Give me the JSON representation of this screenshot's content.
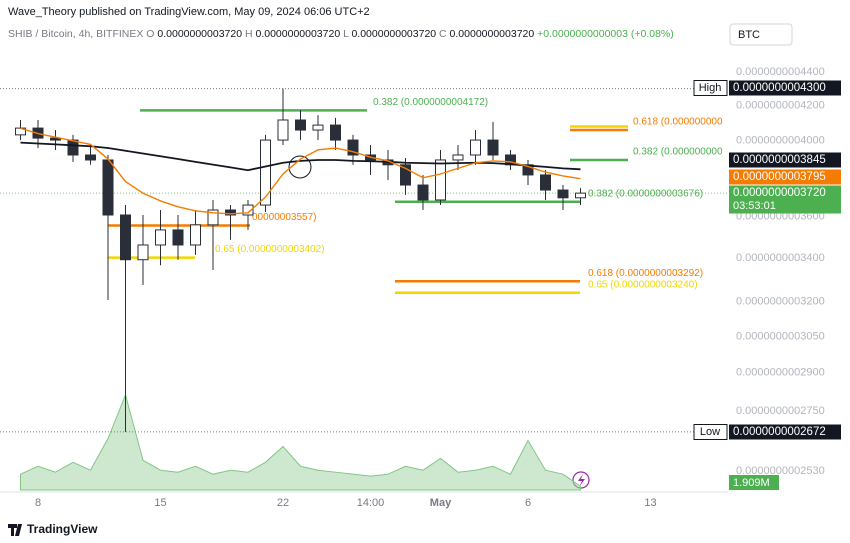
{
  "header": {
    "publisher": "Wave_Theory published on TradingView.com, May 09, 2024 06:06 UTC+2",
    "symbol": "SHIB / Bitcoin, 4h, BITFINEX",
    "ohlc": [
      {
        "key": "O",
        "value": "0.0000000003720"
      },
      {
        "key": "H",
        "value": "0.0000000003720"
      },
      {
        "key": "L",
        "value": "0.0000000003720"
      },
      {
        "key": "C",
        "value": "0.0000000003720"
      }
    ],
    "change": "+0.0000000000003 (+0.08%)",
    "currency": "BTC"
  },
  "footer": {
    "brand": "TradingView"
  },
  "chart_data": {
    "type": "candlestick",
    "log": true,
    "grid": false,
    "categories": [
      null,
      "8",
      null,
      null,
      null,
      null,
      null,
      null,
      "15",
      null,
      null,
      null,
      null,
      null,
      null,
      "22",
      null,
      null,
      null,
      null,
      "14:00",
      null,
      null,
      null,
      "May",
      null,
      null,
      null,
      null,
      "6",
      null,
      null,
      null,
      null,
      null,
      null,
      "13"
    ],
    "candles": {
      "up_color": "#ffffff",
      "down_color": "#2a2e39",
      "edge_color": "#2a2e39",
      "open": [
        4.033e-10,
        4.071e-10,
        4.015e-10,
        4.004e-10,
        3.922e-10,
        3.895e-10,
        3.609e-10,
        3.392e-10,
        3.462e-10,
        3.535e-10,
        3.462e-10,
        3.56e-10,
        3.634e-10,
        3.609e-10,
        3.659e-10,
        4.004e-10,
        4.117e-10,
        4.06e-10,
        4.088e-10,
        4.004e-10,
        3.922e-10,
        3.895e-10,
        3.869e-10,
        3.762e-10,
        3.685e-10,
        3.895e-10,
        3.922e-10,
        4.004e-10,
        3.922e-10,
        3.869e-10,
        3.815e-10,
        3.736e-10,
        3.696e-10,
        null,
        null,
        null,
        null
      ],
      "high": [
        4.117e-10,
        4.117e-10,
        4.06e-10,
        4.033e-10,
        3.977e-10,
        3.922e-10,
        3.659e-10,
        3.609e-10,
        3.634e-10,
        3.609e-10,
        3.634e-10,
        3.685e-10,
        3.659e-10,
        3.685e-10,
        4.033e-10,
        4.3e-10,
        4.174e-10,
        4.145e-10,
        4.129e-10,
        4.033e-10,
        3.977e-10,
        3.949e-10,
        3.906e-10,
        3.815e-10,
        3.949e-10,
        3.977e-10,
        4.06e-10,
        4.106e-10,
        3.949e-10,
        3.895e-10,
        3.841e-10,
        3.762e-10,
        3.747e-10,
        null,
        null,
        null,
        null
      ],
      "low": [
        4.004e-10,
        3.96e-10,
        3.949e-10,
        3.884e-10,
        3.869e-10,
        3.208e-10,
        2.672e-10,
        3.275e-10,
        3.366e-10,
        3.392e-10,
        3.415e-10,
        3.344e-10,
        3.487e-10,
        3.535e-10,
        3.624e-10,
        3.977e-10,
        4.004e-10,
        4.004e-10,
        3.949e-10,
        3.869e-10,
        3.815e-10,
        3.788e-10,
        3.711e-10,
        3.634e-10,
        3.659e-10,
        3.841e-10,
        3.869e-10,
        3.895e-10,
        3.841e-10,
        3.762e-10,
        3.685e-10,
        3.634e-10,
        3.659e-10,
        null,
        null,
        null,
        null
      ],
      "close": [
        4.071e-10,
        4.015e-10,
        4.004e-10,
        3.922e-10,
        3.895e-10,
        3.609e-10,
        3.392e-10,
        3.462e-10,
        3.535e-10,
        3.462e-10,
        3.56e-10,
        3.634e-10,
        3.609e-10,
        3.659e-10,
        4.004e-10,
        4.117e-10,
        4.06e-10,
        4.088e-10,
        4.004e-10,
        3.922e-10,
        3.895e-10,
        3.869e-10,
        3.762e-10,
        3.685e-10,
        3.895e-10,
        3.922e-10,
        4.004e-10,
        3.922e-10,
        3.869e-10,
        3.815e-10,
        3.736e-10,
        3.696e-10,
        3.72e-10,
        null,
        null,
        null,
        null
      ]
    },
    "lines": [
      {
        "color": "#131722",
        "values": [
          3.99e-10,
          3.985e-10,
          3.98e-10,
          3.975e-10,
          3.97e-10,
          3.96e-10,
          3.945e-10,
          3.93e-10,
          3.915e-10,
          3.9e-10,
          3.885e-10,
          3.87e-10,
          3.855e-10,
          3.84e-10,
          3.86e-10,
          3.88e-10,
          3.89e-10,
          3.895e-10,
          3.895e-10,
          3.89e-10,
          3.888e-10,
          3.885e-10,
          3.88e-10,
          3.878e-10,
          3.876e-10,
          3.878e-10,
          3.88e-10,
          3.878e-10,
          3.872e-10,
          3.865e-10,
          3.858e-10,
          3.85e-10,
          3.845e-10,
          null,
          null,
          null,
          null
        ]
      },
      {
        "color": "#f57c00",
        "values": [
          4.07e-10,
          4.04e-10,
          4.02e-10,
          4e-10,
          3.98e-10,
          3.9e-10,
          3.78e-10,
          3.72e-10,
          3.68e-10,
          3.65e-10,
          3.63e-10,
          3.62e-10,
          3.615e-10,
          3.62e-10,
          3.7e-10,
          3.82e-10,
          3.9e-10,
          3.95e-10,
          3.96e-10,
          3.94e-10,
          3.91e-10,
          3.89e-10,
          3.85e-10,
          3.8e-10,
          3.82e-10,
          3.85e-10,
          3.88e-10,
          3.89e-10,
          3.885e-10,
          3.86e-10,
          3.83e-10,
          3.81e-10,
          3.795e-10,
          null,
          null,
          null,
          null
        ]
      }
    ],
    "volume": {
      "color": "#a5d6a7",
      "label_color": "#4caf50",
      "values": [
        8000000,
        12000000,
        9000000,
        14000000,
        10000000,
        26000000,
        48000000,
        15000000,
        10000000,
        9000000,
        12000000,
        8000000,
        10000000,
        9000000,
        14000000,
        22000000,
        12000000,
        10000000,
        9000000,
        8000000,
        7000000,
        8000000,
        12000000,
        10000000,
        16000000,
        9000000,
        10000000,
        12000000,
        8000000,
        25000000,
        10000000,
        8000000,
        1909000,
        null,
        null,
        null,
        null
      ],
      "value_labels": [
        null,
        null,
        null,
        null,
        null,
        null,
        null,
        null,
        null,
        null,
        null,
        null,
        null,
        null,
        null,
        null,
        null,
        null,
        null,
        null,
        null,
        null,
        null,
        null,
        null,
        null,
        null,
        null,
        null,
        null,
        null,
        null,
        "1.909M",
        null,
        null,
        null,
        null
      ]
    },
    "levels": [
      {
        "label": "0.382 (0.0000000004172)",
        "value": 4.172e-10,
        "color": "#4caf50"
      },
      {
        "label": "00000003557)",
        "value": 3.557e-10,
        "color": "#f57c00"
      },
      {
        "label": "0.65 (0.0000000003402)",
        "value": 3.402e-10,
        "color": "#f2d600"
      },
      {
        "label": "0.382 (0.0000000003676)",
        "value": 3.676e-10,
        "color": "#4caf50"
      },
      {
        "label": "0.618 (0.0000000003292)",
        "value": 3.292e-10,
        "color": "#f57c00"
      },
      {
        "label": "0.65 (0.0000000003240)",
        "value": 3.24e-10,
        "color": "#f2d600"
      },
      {
        "label": "0.382 (0.000000000",
        "value": 3.895e-10,
        "color": "#4caf50"
      },
      {
        "label": "0.618 (0.000000000",
        "value": 4.06e-10,
        "color": "#f57c00"
      },
      {
        "value": 4.08e-10,
        "color": "#f2d600"
      }
    ],
    "price_labels": [
      {
        "name": "High",
        "value": 4.3e-10,
        "label": "0.0000000004300",
        "color": "#131722"
      },
      {
        "value": 3.845e-10,
        "label": "0.0000000003845",
        "color": "#131722"
      },
      {
        "value": 3.795e-10,
        "label": "0.0000000003795",
        "color": "#f57c00"
      },
      {
        "value": 3.72e-10,
        "label": "0.0000000003720",
        "color": "#4caf50",
        "countdown": "03:53:01"
      },
      {
        "name": "Low",
        "value": 2.672e-10,
        "label": "0.0000000002672",
        "color": "#131722"
      }
    ],
    "ylim": [
      2.465e-10,
      4.568e-10
    ],
    "yticks": [
      {
        "value": 4.4e-10,
        "label": "0.0000000004400"
      },
      {
        "value": 4.2e-10,
        "label": "0.0000000004200"
      },
      {
        "value": 4e-10,
        "label": "0.0000000004000"
      },
      {
        "value": 3.6e-10,
        "label": "0.0000000003600"
      },
      {
        "value": 3.4e-10,
        "label": "0.0000000003400"
      },
      {
        "value": 3.2e-10,
        "label": "0.0000000003200"
      },
      {
        "value": 3.05e-10,
        "label": "0.0000000003050"
      },
      {
        "value": 2.9e-10,
        "label": "0.0000000002900"
      },
      {
        "value": 2.75e-10,
        "label": "0.0000000002750"
      },
      {
        "value": 2.53e-10,
        "label": "0.0000000002530"
      }
    ]
  }
}
